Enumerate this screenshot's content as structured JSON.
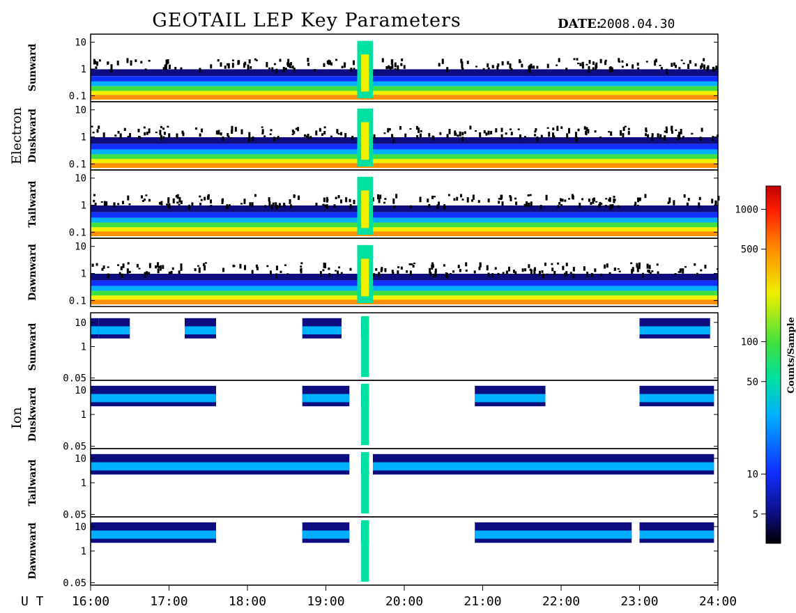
{
  "title": "GEOTAIL LEP Key Parameters",
  "date_label": "DATE:",
  "date_value": "2008.04.30",
  "x_axis_label": "U T",
  "chart_data": {
    "type": "heatmap",
    "x_ticks": [
      "16:00",
      "17:00",
      "18:00",
      "19:00",
      "20:00",
      "21:00",
      "22:00",
      "23:00",
      "24:00"
    ],
    "x_range_hours": [
      16,
      24
    ],
    "colorbar": {
      "label": "Counts/Sample",
      "scale": "log",
      "range": [
        3,
        1500
      ],
      "ticks": [
        "5",
        "10",
        "50",
        "100",
        "500",
        "1000"
      ],
      "tick_values": [
        5,
        10,
        50,
        100,
        500,
        1000
      ],
      "colors": [
        "#000000",
        "#0d0d80",
        "#1030ff",
        "#00b0ff",
        "#00e0a0",
        "#40e040",
        "#f0f000",
        "#ff9000",
        "#ff2000",
        "#c00000"
      ]
    },
    "groups": [
      {
        "name": "Electron",
        "y_scale": "log",
        "y_range": [
          0.06,
          20
        ],
        "y_ticks": [
          "10",
          "1",
          "0.1"
        ],
        "y_tick_values": [
          10,
          1,
          0.1
        ],
        "panels": [
          {
            "name": "Sunward"
          },
          {
            "name": "Duskward"
          },
          {
            "name": "Tailward"
          },
          {
            "name": "Dawnward"
          }
        ]
      },
      {
        "name": "Ion",
        "y_scale": "log",
        "y_range": [
          0.04,
          25
        ],
        "y_ticks": [
          "10",
          "1",
          "0.05"
        ],
        "y_tick_values": [
          10,
          1,
          0.05
        ],
        "panels": [
          {
            "name": "Sunward"
          },
          {
            "name": "Duskward"
          },
          {
            "name": "Tailward"
          },
          {
            "name": "Dawnward"
          }
        ]
      }
    ]
  }
}
